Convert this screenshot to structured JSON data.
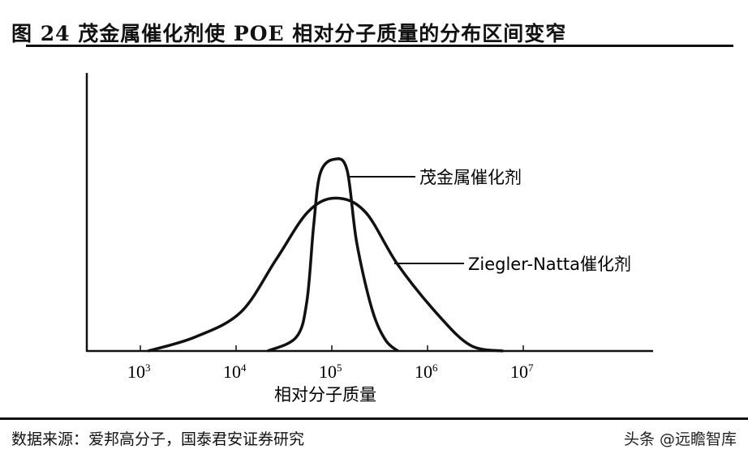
{
  "title": "图 24 茂金属催化剂使 POE 相对分子质量的分布区间变窄",
  "source": "数据来源：爱邦高分子，国泰君安证券研究",
  "watermark": "头条 @远瞻智库",
  "chart_data": {
    "type": "line",
    "xlabel": "相对分子质量",
    "ylabel": "",
    "x_scale": "log",
    "xlim": [
      1000,
      10000000
    ],
    "x_ticks": [
      {
        "base": "10",
        "exp": "3"
      },
      {
        "base": "10",
        "exp": "4"
      },
      {
        "base": "10",
        "exp": "5"
      },
      {
        "base": "10",
        "exp": "6"
      },
      {
        "base": "10",
        "exp": "7"
      }
    ],
    "y_ticks": [],
    "ylim": [
      0,
      1
    ],
    "grid": false,
    "series": [
      {
        "name": "茂金属催化剂",
        "log10_x": [
          4.33,
          4.63,
          4.74,
          4.81,
          4.88,
          5.03,
          5.16,
          5.26,
          5.42,
          5.56,
          5.69
        ],
        "y": [
          0,
          0.05,
          0.18,
          0.45,
          0.64,
          0.69,
          0.65,
          0.39,
          0.15,
          0.04,
          0
        ]
      },
      {
        "name": "Ziegler-Natta催化剂",
        "log10_x": [
          3.08,
          3.57,
          4.05,
          4.42,
          4.75,
          5.04,
          5.35,
          5.69,
          6.11,
          6.45,
          6.79
        ],
        "y": [
          0,
          0.05,
          0.14,
          0.33,
          0.5,
          0.55,
          0.5,
          0.31,
          0.13,
          0.02,
          0
        ]
      }
    ]
  }
}
